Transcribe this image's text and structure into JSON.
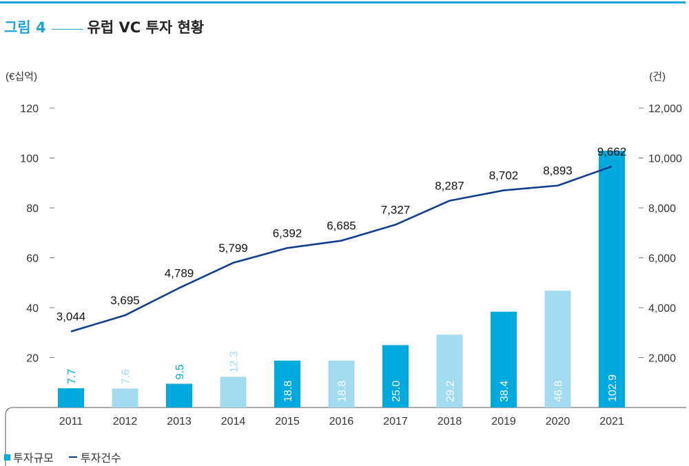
{
  "figure": {
    "number": "그림 4",
    "title": "유럽 VC 투자 현황"
  },
  "chart_data": {
    "type": "bar",
    "categories": [
      "2011",
      "2012",
      "2013",
      "2014",
      "2015",
      "2016",
      "2017",
      "2018",
      "2019",
      "2020",
      "2021"
    ],
    "series": [
      {
        "name": "투자규모",
        "type": "bar",
        "axis": "left",
        "values": [
          7.7,
          7.6,
          9.5,
          12.3,
          18.8,
          18.8,
          25.0,
          29.2,
          38.4,
          46.8,
          102.9
        ],
        "labels": [
          "7.7",
          "7.6",
          "9.5",
          "12.3",
          "18.8",
          "18.8",
          "25.0",
          "29.2",
          "38.4",
          "46.8",
          "102.9"
        ],
        "colors": [
          "#00a9de",
          "#a2daf0",
          "#00a9de",
          "#a2daf0",
          "#00a9de",
          "#a2daf0",
          "#00a9de",
          "#a2daf0",
          "#00a9de",
          "#a2daf0",
          "#00a9de"
        ]
      },
      {
        "name": "투자건수",
        "type": "line",
        "axis": "right",
        "values": [
          3044,
          3695,
          4789,
          5799,
          6392,
          6685,
          7327,
          8287,
          8702,
          8893,
          9662
        ],
        "labels": [
          "3,044",
          "3,695",
          "4,789",
          "5,799",
          "6,392",
          "6,685",
          "7,327",
          "8,287",
          "8,702",
          "8,893",
          "9,662"
        ],
        "color": "#0f3f8c"
      }
    ],
    "y_left": {
      "label": "(€십억)",
      "ticks": [
        20,
        40,
        60,
        80,
        100,
        120
      ],
      "tick_labels": [
        "20",
        "40",
        "60",
        "80",
        "100",
        "120"
      ],
      "range": [
        0,
        120
      ]
    },
    "y_right": {
      "label": "(건)",
      "ticks": [
        2000,
        4000,
        6000,
        8000,
        10000,
        12000
      ],
      "tick_labels": [
        "2,000",
        "4,000",
        "6,000",
        "8,000",
        "10,000",
        "12,000"
      ],
      "range": [
        0,
        12000
      ]
    },
    "grid": false,
    "legend_position": "bottom-left"
  },
  "legend": {
    "bar_label": "투자규모",
    "line_label": "투자건수"
  }
}
